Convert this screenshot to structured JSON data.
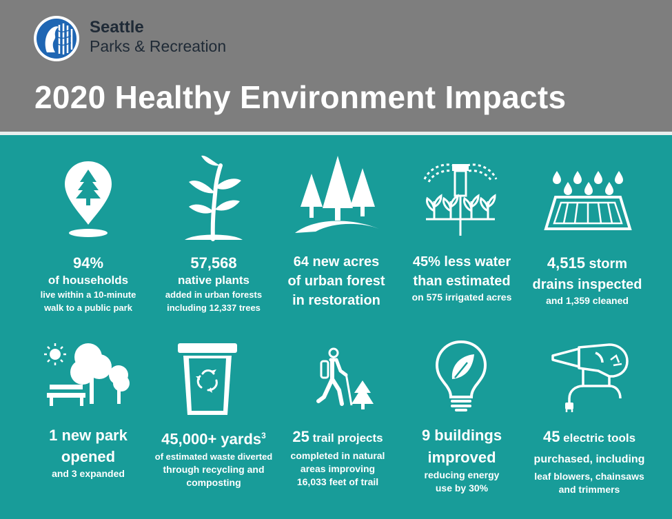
{
  "brand": {
    "line1": "Seattle",
    "line2": "Parks & Recreation",
    "logo_icon": "seattle-seal-icon"
  },
  "title": "2020 Healthy Environment Impacts",
  "colors": {
    "header_bg": "#7e7e7e",
    "teal": "#189c99",
    "white": "#ffffff",
    "brand_text": "#1f2a36"
  },
  "stats": [
    {
      "icon": "map-pin-tree-icon",
      "headline": "94%",
      "line2": "of households",
      "line3": "live within a 10-minute",
      "line4": "walk to a public park"
    },
    {
      "icon": "sprout-icon",
      "headline": "57,568",
      "line2": "native plants",
      "line3": "added in urban forests",
      "line4": "including 12,337 trees"
    },
    {
      "icon": "forest-icon",
      "line1": "64 new acres",
      "line2": "of urban forest",
      "line3": "in restoration"
    },
    {
      "icon": "sprinkler-icon",
      "line1": "45% less water",
      "line2": "than estimated",
      "line3": "on 575 irrigated acres"
    },
    {
      "icon": "storm-drain-icon",
      "line1a": "4,515",
      "line1b": " storm",
      "line2": "drains inspected",
      "line3": "and 1,359 cleaned"
    },
    {
      "icon": "park-bench-icon",
      "line1": "1 new park",
      "line2": "opened",
      "line3": "and 3 expanded"
    },
    {
      "icon": "recycle-bin-icon",
      "line1": "45,000+ yards",
      "sup": "3",
      "line2": "of estimated waste diverted",
      "line3": "through recycling and",
      "line4": "composting"
    },
    {
      "icon": "hiker-icon",
      "line1a": "25",
      "line1b": " trail projects",
      "line2": "completed in natural",
      "line3": "areas improving",
      "line4": "16,033 feet of trail"
    },
    {
      "icon": "eco-bulb-icon",
      "line1": "9 buildings",
      "line2": "improved",
      "line3": "reducing energy",
      "line4": "use by 30%"
    },
    {
      "icon": "leaf-blower-icon",
      "line1a": "45",
      "line1b": " electric tools",
      "line2": "purchased, including",
      "line3": "leaf blowers, chainsaws",
      "line4": "and trimmers"
    }
  ]
}
